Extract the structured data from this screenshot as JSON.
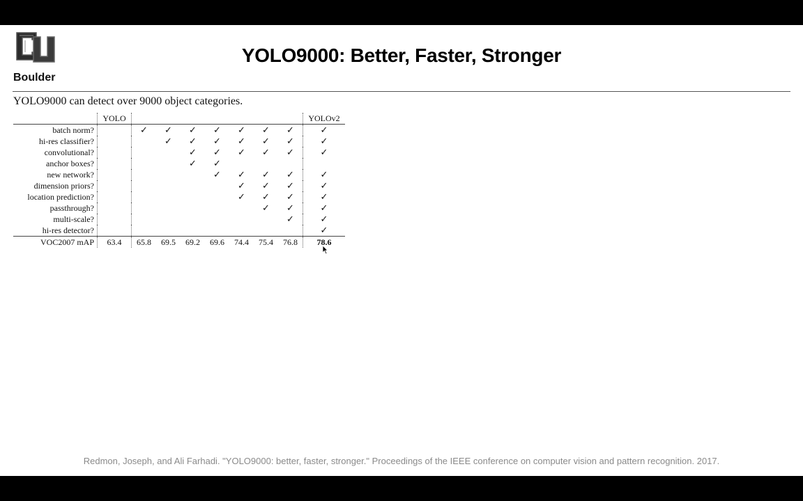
{
  "header": {
    "logo_text": "Boulder",
    "title": "YOLO9000: Better, Faster, Stronger"
  },
  "intro": "YOLO9000 can detect over 9000 object categories.",
  "table": {
    "header_yolo": "YOLO",
    "header_yolov2": "YOLOv2",
    "check_symbol": "✓",
    "rows": [
      {
        "label": "batch norm?",
        "checks": [
          false,
          true,
          true,
          true,
          true,
          true,
          true,
          true,
          true
        ]
      },
      {
        "label": "hi-res classifier?",
        "checks": [
          false,
          false,
          true,
          true,
          true,
          true,
          true,
          true,
          true
        ]
      },
      {
        "label": "convolutional?",
        "checks": [
          false,
          false,
          false,
          true,
          true,
          true,
          true,
          true,
          true
        ]
      },
      {
        "label": "anchor boxes?",
        "checks": [
          false,
          false,
          false,
          true,
          true,
          false,
          false,
          false,
          false
        ]
      },
      {
        "label": "new network?",
        "checks": [
          false,
          false,
          false,
          false,
          true,
          true,
          true,
          true,
          true
        ]
      },
      {
        "label": "dimension priors?",
        "checks": [
          false,
          false,
          false,
          false,
          false,
          true,
          true,
          true,
          true
        ]
      },
      {
        "label": "location prediction?",
        "checks": [
          false,
          false,
          false,
          false,
          false,
          true,
          true,
          true,
          true
        ]
      },
      {
        "label": "passthrough?",
        "checks": [
          false,
          false,
          false,
          false,
          false,
          false,
          true,
          true,
          true
        ]
      },
      {
        "label": "multi-scale?",
        "checks": [
          false,
          false,
          false,
          false,
          false,
          false,
          false,
          true,
          true
        ]
      },
      {
        "label": "hi-res detector?",
        "checks": [
          false,
          false,
          false,
          false,
          false,
          false,
          false,
          false,
          true
        ]
      }
    ],
    "map_label": "VOC2007 mAP",
    "map_values": [
      "63.4",
      "65.8",
      "69.5",
      "69.2",
      "69.6",
      "74.4",
      "75.4",
      "76.8",
      "78.6"
    ]
  },
  "citation": "Redmon, Joseph, and Ali Farhadi. \"YOLO9000: better, faster, stronger.\" Proceedings of the IEEE conference on computer vision and pattern recognition. 2017."
}
